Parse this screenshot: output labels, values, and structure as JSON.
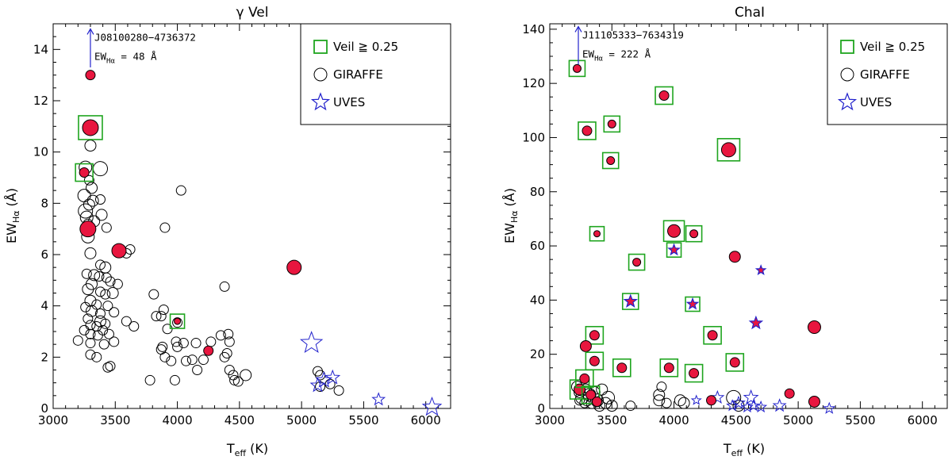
{
  "colors": {
    "filled": "#e8163f",
    "veil": "#1fa51f",
    "uves": "#2222cc",
    "arrow": "#2222cc",
    "axis": "#000000"
  },
  "chart_data": [
    {
      "type": "scatter",
      "title": "γ Vel",
      "xlabel": "T",
      "xlabel_sub": "eff",
      "xlabel_unit": " (K)",
      "ylabel": "EW",
      "ylabel_sub": "Hα",
      "ylabel_unit": " (Å)",
      "xlim": [
        3000,
        6200
      ],
      "ylim": [
        0,
        15
      ],
      "xticks": [
        3000,
        3500,
        4000,
        4500,
        5000,
        5500,
        6000
      ],
      "yticks": [
        0,
        2,
        4,
        6,
        8,
        10,
        12,
        14
      ],
      "legend": {
        "position": "top-right",
        "entries": [
          {
            "symbol": "square",
            "label": "Veil ≧ 0.25"
          },
          {
            "symbol": "circle",
            "label": "GIRAFFE"
          },
          {
            "symbol": "star",
            "label": "UVES"
          }
        ]
      },
      "annotation": {
        "name": "J08100280−4736372",
        "ew_label": "EW",
        "ew_sub": "Hα",
        "ew_value": " = 48 Å",
        "x": 3300,
        "y_from": 13.3,
        "y_to": 14.8
      },
      "giraffe_open": [
        [
          3300,
          10.25
        ],
        [
          3260,
          9.4
        ],
        [
          3380,
          9.35
        ],
        [
          3290,
          8.9
        ],
        [
          3310,
          8.6
        ],
        [
          3250,
          8.3
        ],
        [
          3320,
          8.1
        ],
        [
          3380,
          8.15
        ],
        [
          3290,
          7.95
        ],
        [
          3260,
          7.7
        ],
        [
          3270,
          7.45
        ],
        [
          3330,
          7.3
        ],
        [
          3280,
          7.2
        ],
        [
          3390,
          7.55
        ],
        [
          3430,
          7.05
        ],
        [
          3280,
          6.7
        ],
        [
          3300,
          6.05
        ],
        [
          3380,
          5.6
        ],
        [
          3420,
          5.5
        ],
        [
          3270,
          5.25
        ],
        [
          3330,
          5.2
        ],
        [
          3370,
          5.15
        ],
        [
          3430,
          5.1
        ],
        [
          3310,
          4.85
        ],
        [
          3460,
          4.95
        ],
        [
          3520,
          4.85
        ],
        [
          3280,
          4.65
        ],
        [
          3380,
          4.55
        ],
        [
          3420,
          4.45
        ],
        [
          3480,
          4.5
        ],
        [
          3300,
          4.2
        ],
        [
          3350,
          4.05
        ],
        [
          3260,
          3.95
        ],
        [
          3440,
          4.0
        ],
        [
          3310,
          3.8
        ],
        [
          3380,
          3.7
        ],
        [
          3490,
          3.75
        ],
        [
          3280,
          3.5
        ],
        [
          3380,
          3.4
        ],
        [
          3420,
          3.3
        ],
        [
          3300,
          3.25
        ],
        [
          3350,
          3.2
        ],
        [
          3250,
          3.05
        ],
        [
          3400,
          3.05
        ],
        [
          3300,
          2.9
        ],
        [
          3360,
          2.85
        ],
        [
          3450,
          2.9
        ],
        [
          3490,
          2.6
        ],
        [
          3410,
          2.5
        ],
        [
          3300,
          2.55
        ],
        [
          3200,
          2.65
        ],
        [
          3300,
          2.1
        ],
        [
          3350,
          2.0
        ],
        [
          3440,
          1.6
        ],
        [
          3460,
          1.65
        ],
        [
          3590,
          3.4
        ],
        [
          3650,
          3.2
        ],
        [
          3620,
          6.2
        ],
        [
          3590,
          6.05
        ],
        [
          3810,
          4.45
        ],
        [
          3830,
          3.6
        ],
        [
          3870,
          3.6
        ],
        [
          3890,
          3.85
        ],
        [
          3920,
          3.1
        ],
        [
          3880,
          2.4
        ],
        [
          3870,
          2.3
        ],
        [
          3900,
          2.0
        ],
        [
          3950,
          1.85
        ],
        [
          3980,
          1.1
        ],
        [
          3780,
          1.1
        ],
        [
          3900,
          7.05
        ],
        [
          4030,
          8.5
        ],
        [
          4000,
          3.35
        ],
        [
          3990,
          2.6
        ],
        [
          4000,
          2.4
        ],
        [
          4050,
          2.55
        ],
        [
          4120,
          1.9
        ],
        [
          4160,
          1.5
        ],
        [
          4070,
          1.85
        ],
        [
          4210,
          1.9
        ],
        [
          4150,
          2.55
        ],
        [
          4270,
          2.6
        ],
        [
          4350,
          2.85
        ],
        [
          4380,
          4.75
        ],
        [
          4410,
          2.9
        ],
        [
          4420,
          2.6
        ],
        [
          4400,
          2.15
        ],
        [
          4380,
          2.0
        ],
        [
          4420,
          1.5
        ],
        [
          4450,
          1.3
        ],
        [
          4460,
          1.1
        ],
        [
          4490,
          1.05
        ],
        [
          4550,
          1.3
        ],
        [
          5130,
          1.45
        ],
        [
          5150,
          1.3
        ],
        [
          5230,
          0.95
        ],
        [
          5300,
          0.7
        ],
        [
          5150,
          0.85
        ]
      ],
      "giraffe_filled": [
        [
          3300,
          13.0,
          0
        ],
        [
          3300,
          10.95,
          1
        ],
        [
          3250,
          9.2,
          1
        ],
        [
          3280,
          7.0,
          0
        ],
        [
          3530,
          6.15,
          0
        ],
        [
          4000,
          3.4,
          1
        ],
        [
          4250,
          2.25,
          0
        ],
        [
          4940,
          5.5,
          0
        ]
      ],
      "uves_open": [
        [
          5080,
          2.55
        ],
        [
          5130,
          0.9
        ],
        [
          5180,
          1.1
        ],
        [
          5250,
          1.2
        ],
        [
          5620,
          0.35
        ],
        [
          6050,
          0.05
        ]
      ],
      "uves_filled": [],
      "sizes": {
        "giraffe_open": [
          7,
          8,
          9,
          6,
          7,
          8,
          7,
          6,
          7,
          9,
          8,
          7,
          6,
          7,
          6,
          8,
          7,
          6,
          7,
          6,
          7,
          6,
          6,
          7,
          6,
          6,
          7,
          6,
          6,
          7,
          7,
          6,
          6,
          6,
          7,
          6,
          6,
          6,
          7,
          6,
          6,
          6,
          6,
          6,
          6,
          6,
          6,
          6,
          6,
          6,
          6,
          6,
          6,
          6,
          6,
          6,
          6,
          6,
          6,
          6,
          6,
          6,
          6,
          6,
          6,
          6,
          6,
          6,
          6,
          6,
          6,
          6,
          6,
          6,
          6,
          6,
          6,
          6,
          6,
          6,
          6,
          6,
          6,
          6,
          6,
          6,
          6,
          6,
          6,
          6,
          6,
          6,
          7,
          6,
          6,
          6
        ],
        "giraffe_filled": [
          6,
          10,
          6,
          10,
          9,
          4,
          6,
          9
        ],
        "uves_open": [
          14,
          9,
          10,
          9,
          8,
          12
        ]
      }
    },
    {
      "type": "scatter",
      "title": "ChaI",
      "xlabel": "T",
      "xlabel_sub": "eff",
      "xlabel_unit": " (K)",
      "ylabel": "EW",
      "ylabel_sub": "Hα",
      "ylabel_unit": " (Å)",
      "xlim": [
        3000,
        6200
      ],
      "ylim": [
        0,
        142
      ],
      "xticks": [
        3000,
        3500,
        4000,
        4500,
        5000,
        5500,
        6000
      ],
      "yticks": [
        0,
        20,
        40,
        60,
        80,
        100,
        120,
        140
      ],
      "legend": {
        "position": "top-right",
        "entries": [
          {
            "symbol": "square",
            "label": "Veil ≧ 0.25"
          },
          {
            "symbol": "circle",
            "label": "GIRAFFE"
          },
          {
            "symbol": "star",
            "label": "UVES"
          }
        ]
      },
      "annotation": {
        "name": "J11105333−7634319",
        "ew_label": "EW",
        "ew_sub": "Hα",
        "ew_value": " = 222 Å",
        "x": 3230,
        "y_from": 127,
        "y_to": 141
      },
      "giraffe_open": [
        [
          3220,
          8
        ],
        [
          3240,
          6
        ],
        [
          3260,
          4
        ],
        [
          3290,
          7
        ],
        [
          3300,
          3
        ],
        [
          3320,
          5
        ],
        [
          3340,
          2
        ],
        [
          3360,
          6
        ],
        [
          3380,
          3
        ],
        [
          3400,
          1
        ],
        [
          3420,
          7
        ],
        [
          3450,
          2
        ],
        [
          3470,
          4
        ],
        [
          3500,
          1
        ],
        [
          3240,
          3
        ],
        [
          3280,
          2
        ],
        [
          3650,
          1
        ],
        [
          3880,
          5
        ],
        [
          3880,
          3
        ],
        [
          3900,
          8
        ],
        [
          3940,
          2
        ],
        [
          4050,
          3
        ],
        [
          4080,
          2
        ],
        [
          4480,
          4
        ],
        [
          4520,
          1
        ]
      ],
      "giraffe_filled": [
        [
          3220,
          125.5,
          1
        ],
        [
          3300,
          102.5,
          1
        ],
        [
          3500,
          105,
          1
        ],
        [
          3490,
          91.5,
          1
        ],
        [
          3920,
          115.5,
          1
        ],
        [
          4440,
          95.5,
          1
        ],
        [
          3380,
          64.5,
          1
        ],
        [
          3700,
          54,
          1
        ],
        [
          4000,
          65.5,
          1
        ],
        [
          4160,
          64.5,
          1
        ],
        [
          4490,
          56,
          0
        ],
        [
          3360,
          27,
          1
        ],
        [
          3290,
          23,
          0
        ],
        [
          3360,
          17.5,
          1
        ],
        [
          3580,
          15,
          1
        ],
        [
          3960,
          15,
          1
        ],
        [
          4160,
          13,
          1
        ],
        [
          4310,
          27,
          1
        ],
        [
          4490,
          17,
          1
        ],
        [
          5130,
          30,
          0
        ],
        [
          3240,
          7,
          1
        ],
        [
          3280,
          11,
          1
        ],
        [
          3330,
          5,
          1
        ],
        [
          3380,
          2.5,
          0
        ],
        [
          4300,
          3,
          0
        ],
        [
          4930,
          5.5,
          0
        ],
        [
          5130,
          2.5,
          0
        ]
      ],
      "uves_open": [
        [
          4180,
          3
        ],
        [
          4350,
          4
        ],
        [
          4470,
          1
        ],
        [
          4520,
          2
        ],
        [
          4590,
          0.5
        ],
        [
          4620,
          4
        ],
        [
          4640,
          1
        ],
        [
          4700,
          0.5
        ],
        [
          4850,
          1
        ],
        [
          5250,
          0
        ]
      ],
      "uves_filled": [
        [
          3650,
          39.5,
          1
        ],
        [
          4000,
          58.5,
          1
        ],
        [
          4150,
          38.5,
          1
        ],
        [
          4700,
          51,
          0
        ],
        [
          4660,
          31.5,
          0
        ]
      ],
      "sizes": {
        "giraffe_open": [
          7,
          7,
          8,
          7,
          7,
          8,
          7,
          7,
          8,
          7,
          7,
          7,
          8,
          7,
          6,
          6,
          6,
          7,
          7,
          6,
          6,
          7,
          7,
          9,
          7
        ],
        "giraffe_filled": [
          5,
          6,
          5,
          5,
          6,
          9,
          4,
          5,
          8,
          5,
          7,
          6,
          7,
          6,
          6,
          6,
          6,
          6,
          6,
          8,
          7,
          6,
          6,
          6,
          6,
          6,
          7
        ],
        "uves_open": [
          6,
          8,
          7,
          8,
          7,
          9,
          7,
          7,
          8,
          7
        ],
        "uves_filled": [
          8,
          7,
          7,
          6,
          8
        ]
      }
    }
  ]
}
